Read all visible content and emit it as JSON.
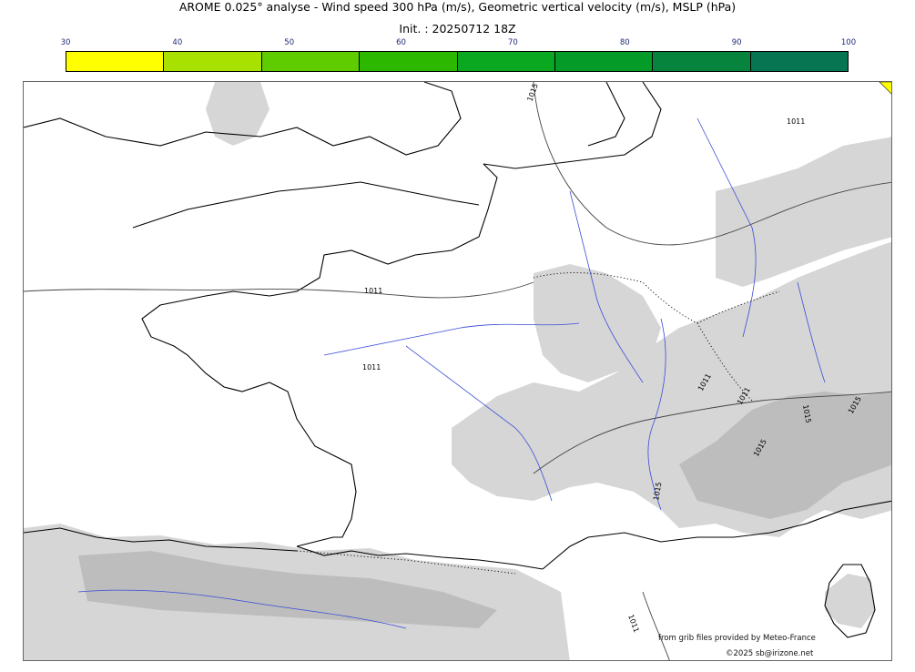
{
  "title": "AROME 0.025° analyse - Wind speed 300 hPa (m/s), Geometric vertical velocity (m/s), MSLP (hPa)",
  "subtitle": "Init. : 20250712 18Z",
  "colorbar": {
    "ticks": [
      "30",
      "40",
      "50",
      "60",
      "70",
      "80",
      "90",
      "100"
    ],
    "colors": [
      "#ffff00",
      "#a8e000",
      "#5fcc00",
      "#2db800",
      "#0aa820",
      "#049b28",
      "#06843e",
      "#077551"
    ]
  },
  "isobar_labels": [
    "1015",
    "1011",
    "1011",
    "1011",
    "1011",
    "1011",
    "1015",
    "1015",
    "1015",
    "1015",
    "1011"
  ],
  "credits": {
    "source": "from grib files provided by Meteo-France",
    "copyright": "©2025 sb@irizone.net"
  }
}
